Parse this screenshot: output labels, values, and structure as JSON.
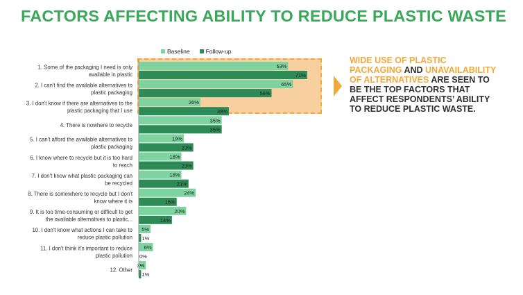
{
  "title": "FACTORS AFFECTING ABILITY TO REDUCE PLASTIC WASTE",
  "colors": {
    "title": "#3aa85a",
    "baseline": "#7ed3a0",
    "followup": "#2e8a57",
    "highlight": "#f0a93a",
    "highlight_fill": "#f8cf9e"
  },
  "callout": {
    "part1": "WIDE USE OF PLASTIC PACKAGING",
    "part2": " AND ",
    "part3": "UNAVAILABILITY OF ALTERNATIVES",
    "part4": " ARE SEEN TO BE THE TOP FACTORS THAT AFFECT RESPONDENTS’ ABILITY TO REDUCE PLASTIC WASTE."
  },
  "chart_data": {
    "type": "bar",
    "orientation": "horizontal",
    "categories": [
      [
        "1. Some of the packaging I need is only",
        "available in plastic"
      ],
      [
        "2. I can't find the available alternatives to",
        "plastic packaging"
      ],
      [
        "3. I don't know if there are alternatives to the",
        "plastic packaging that I use"
      ],
      [
        "4. There is nowhere to recycle"
      ],
      [
        "5. I can't afford the available alternatives to",
        "plastic packaging"
      ],
      [
        "6. I know where to recycle but it is too hard",
        "to reach"
      ],
      [
        "7. I don't know what plastic packaging can",
        "be recycled"
      ],
      [
        "8. There is somewhere to recycle but I don't",
        "know where it is"
      ],
      [
        "9. It is too time-consuming or difficult to get",
        "the available alternatives to plastic..."
      ],
      [
        "10. I don't know what actions I can take to",
        "reduce plastic pollution"
      ],
      [
        "11. I don't think it's important to reduce",
        "plastic pollution"
      ],
      [
        "12. Other"
      ]
    ],
    "series": [
      {
        "name": "Baseline",
        "values": [
          63,
          65,
          26,
          35,
          19,
          18,
          18,
          24,
          20,
          5,
          6,
          3
        ]
      },
      {
        "name": "Follow-up",
        "values": [
          71,
          56,
          38,
          35,
          23,
          23,
          21,
          16,
          14,
          1,
          0,
          1
        ]
      }
    ],
    "value_suffix": "%",
    "xlim": [
      0,
      100
    ],
    "legend_position": "top",
    "highlighted_categories": [
      0,
      1,
      2
    ]
  }
}
